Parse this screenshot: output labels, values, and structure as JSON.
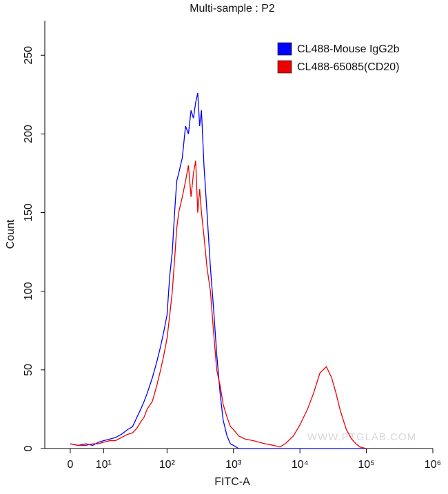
{
  "chart_data": {
    "type": "line",
    "title": "Multi-sample : P2",
    "xlabel": "FITC-A",
    "ylabel": "Count",
    "xscale": "asinh",
    "x": [
      0,
      2,
      4,
      6,
      8,
      10,
      13,
      16,
      20,
      25,
      30,
      35,
      40,
      45,
      50,
      60,
      70,
      80,
      90,
      100,
      110,
      120,
      130,
      140,
      150,
      170,
      190,
      210,
      230,
      250,
      270,
      290,
      310,
      330,
      360,
      400,
      450,
      500,
      560,
      630,
      700,
      800,
      900,
      1000,
      1200,
      1500,
      2000,
      3000,
      4000,
      5000,
      6000,
      8000,
      10000,
      13000,
      16000,
      20000,
      25000,
      30000,
      35000,
      40000,
      45000,
      50000,
      60000,
      70000,
      80000,
      100000
    ],
    "series": [
      {
        "name": "CL488-Mouse IgG2b",
        "color": "#0000ff",
        "values": [
          3,
          2,
          3,
          2,
          4,
          5,
          6,
          7,
          9,
          12,
          14,
          20,
          25,
          30,
          35,
          45,
          55,
          65,
          75,
          85,
          110,
          125,
          150,
          170,
          175,
          185,
          205,
          200,
          215,
          210,
          220,
          226,
          205,
          215,
          180,
          150,
          115,
          90,
          60,
          35,
          18,
          8,
          3,
          2,
          0,
          0,
          0,
          0,
          0,
          0,
          0,
          0,
          0,
          0,
          0,
          0,
          0,
          0,
          0,
          0,
          0,
          0,
          0,
          0,
          0,
          0
        ]
      },
      {
        "name": "CL488-65085(CD20)",
        "color": "#ee0000",
        "values": [
          3,
          2,
          2,
          3,
          3,
          4,
          5,
          5,
          7,
          9,
          10,
          13,
          17,
          20,
          25,
          30,
          40,
          50,
          60,
          70,
          85,
          100,
          120,
          140,
          150,
          160,
          170,
          180,
          160,
          175,
          183,
          150,
          165,
          150,
          135,
          115,
          100,
          75,
          50,
          40,
          28,
          20,
          14,
          12,
          8,
          6,
          5,
          3,
          2,
          1,
          3,
          8,
          15,
          25,
          35,
          48,
          52,
          45,
          35,
          25,
          18,
          12,
          6,
          3,
          1,
          0
        ]
      }
    ],
    "xlim": [
      -7,
      1000000
    ],
    "xticks": [
      0,
      {
        "value": 10,
        "label": "10¹"
      },
      {
        "value": 100,
        "label": "10²"
      },
      {
        "value": 1000,
        "label": "10³"
      },
      {
        "value": 10000,
        "label": "10⁴"
      },
      {
        "value": 100000,
        "label": "10⁵"
      },
      {
        "value": 1000000,
        "label": "10⁶"
      }
    ],
    "ylim": [
      0,
      272
    ],
    "yticks": [
      0,
      50,
      100,
      150,
      200,
      250
    ],
    "legend": "top-right",
    "watermark": "WWW.PTGLAB.COM"
  }
}
